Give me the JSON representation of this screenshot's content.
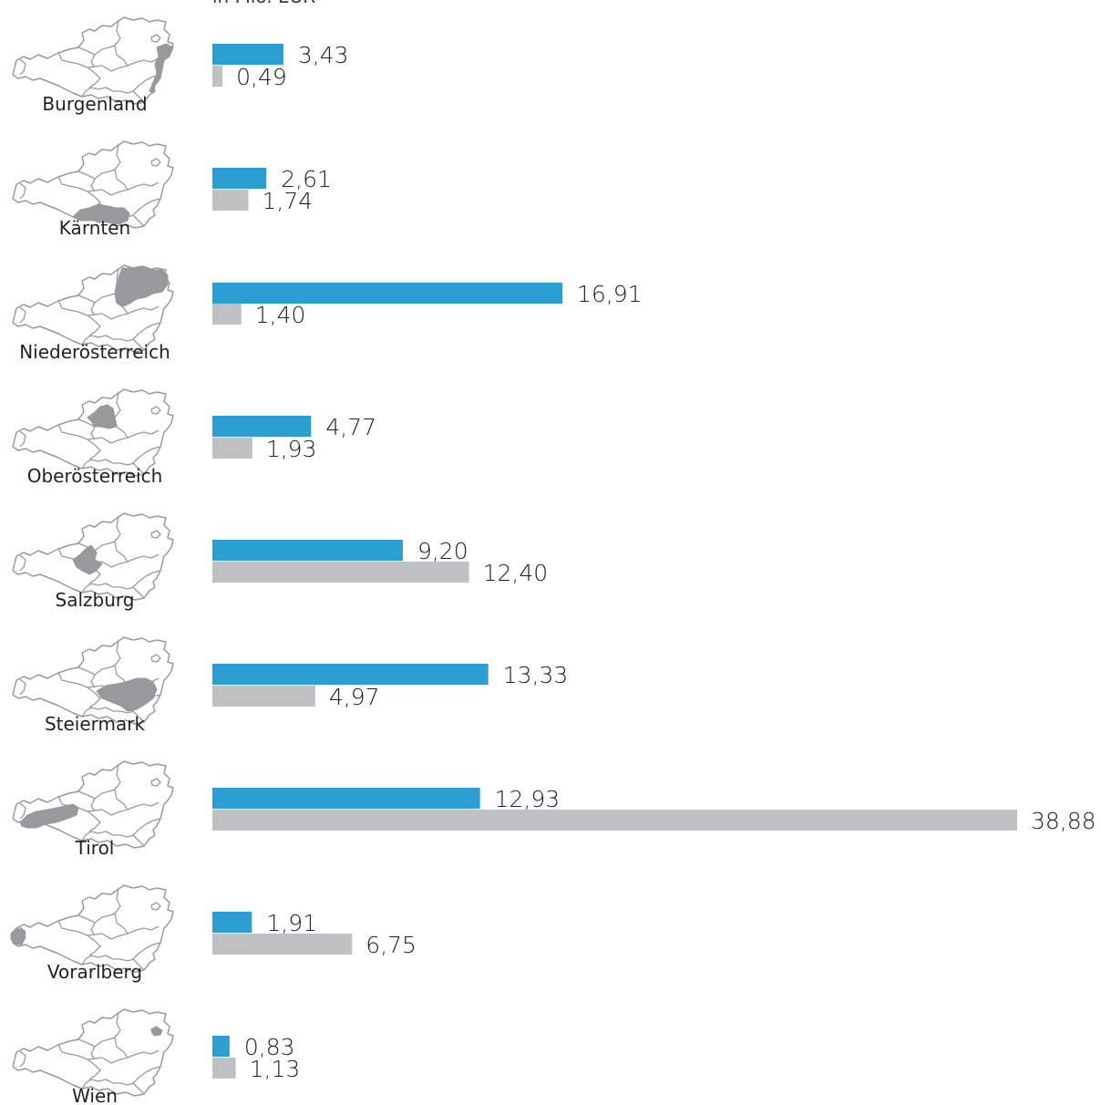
{
  "chart_data": {
    "type": "bar",
    "orientation": "horizontal",
    "unit_label": "in Mio. EUR",
    "categories": [
      "Burgenland",
      "Kärnten",
      "Niederösterreich",
      "Oberösterreich",
      "Salzburg",
      "Steiermark",
      "Tirol",
      "Vorarlberg",
      "Wien"
    ],
    "series": [
      {
        "color": "#2b9fd3",
        "values": [
          3.43,
          2.61,
          16.91,
          4.77,
          9.2,
          13.33,
          12.93,
          1.91,
          0.83
        ],
        "labels": [
          "3,43",
          "2,61",
          "16,91",
          "4,77",
          "9,20",
          "13,33",
          "12,93",
          "1,91",
          "0,83"
        ]
      },
      {
        "color": "#bfc1c3",
        "values": [
          0.49,
          1.74,
          1.4,
          1.93,
          12.4,
          4.97,
          38.88,
          6.75,
          1.13
        ],
        "labels": [
          "0,49",
          "1,74",
          "1,40",
          "1,93",
          "12,40",
          "4,97",
          "38,88",
          "6,75",
          "1,13"
        ]
      }
    ],
    "xlim": [
      0,
      38.88
    ],
    "grid": false,
    "legend": "none",
    "icons": "austria-map-icon"
  }
}
